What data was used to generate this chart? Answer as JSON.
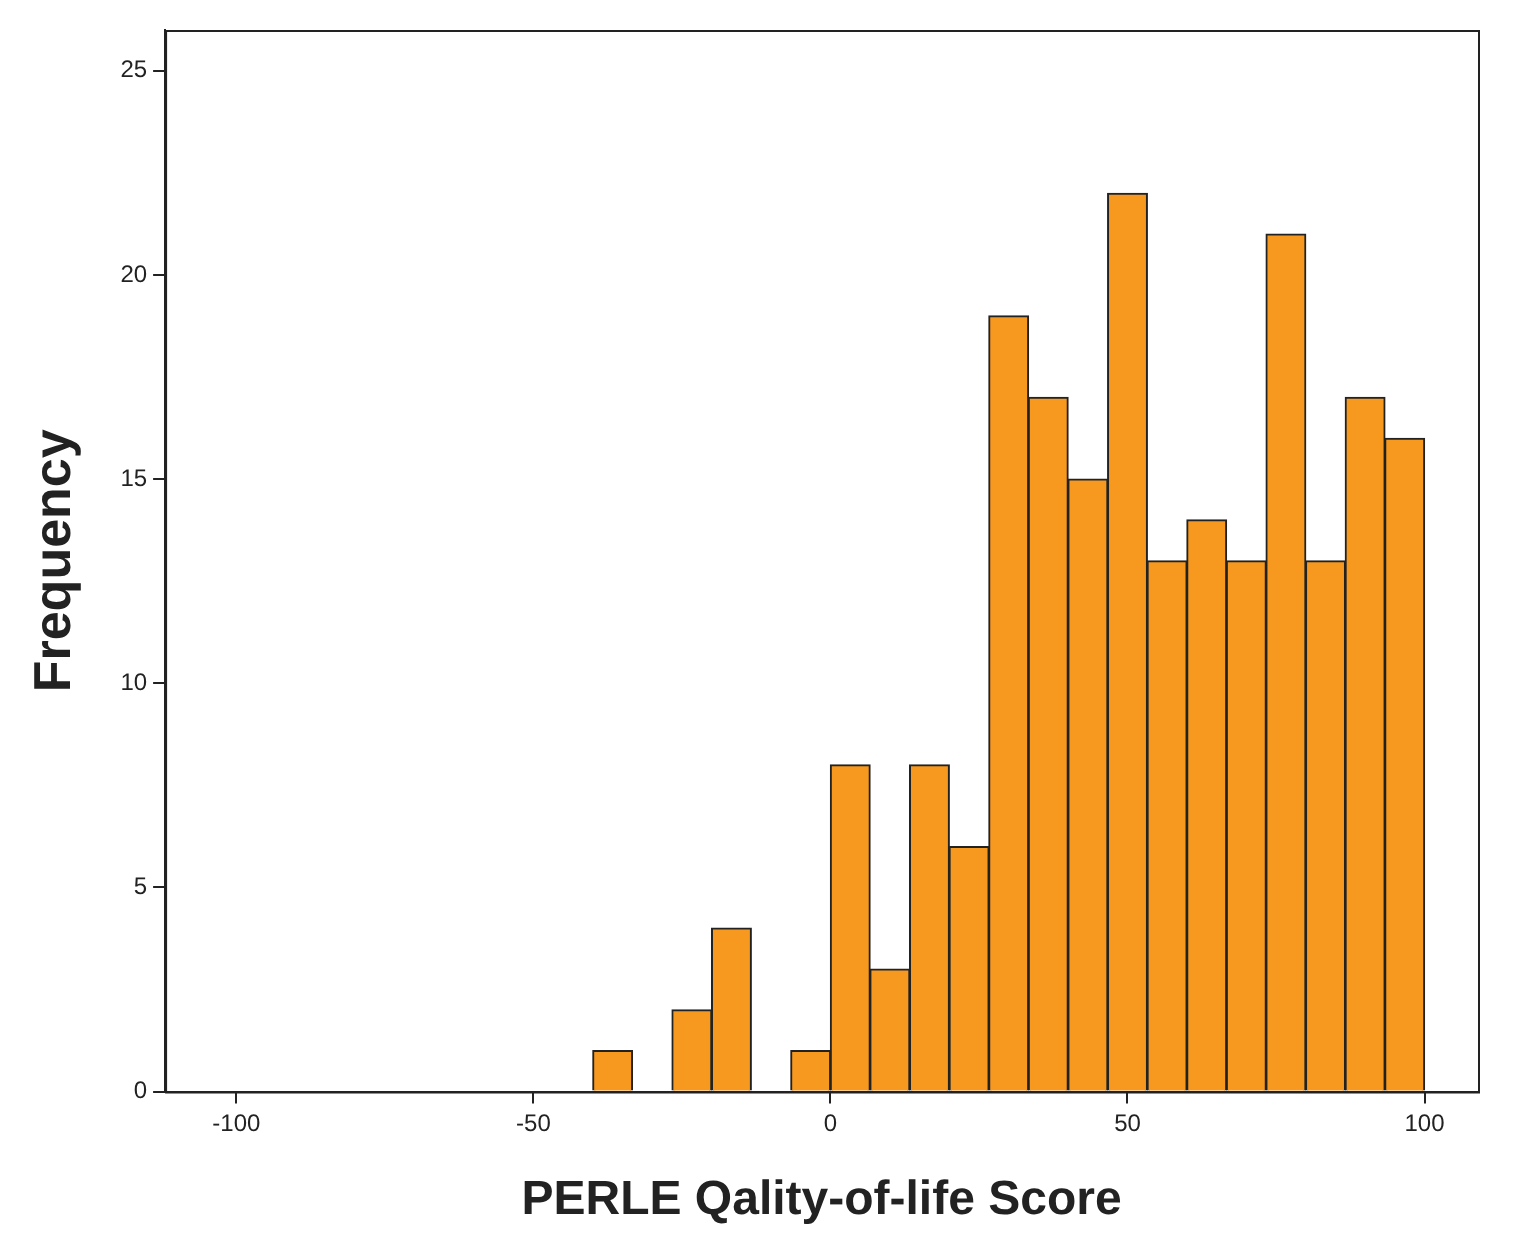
{
  "chart_data": {
    "type": "histogram",
    "xlabel": "PERLE Qality-of-life Score",
    "ylabel": "Frequency",
    "bins": [
      -40,
      -33.33,
      -26.67,
      -20,
      -13.33,
      -6.67,
      0,
      6.67,
      13.33,
      20,
      26.67,
      33.33,
      40,
      46.67,
      53.33,
      60,
      66.67,
      73.33,
      80,
      86.67,
      93.33,
      100
    ],
    "values": [
      1,
      0,
      2,
      4,
      0,
      1,
      8,
      3,
      8,
      6,
      19,
      17,
      15,
      22,
      13,
      14,
      13,
      21,
      13,
      17,
      16
    ],
    "color": "#f7991f",
    "xlim": [
      -112,
      109
    ],
    "xticks": [
      -100,
      -50,
      0,
      50,
      100
    ],
    "ylim": [
      0,
      26
    ],
    "yticks": [
      0,
      5,
      10,
      15,
      20,
      25
    ],
    "grid": false,
    "legend": false
  }
}
